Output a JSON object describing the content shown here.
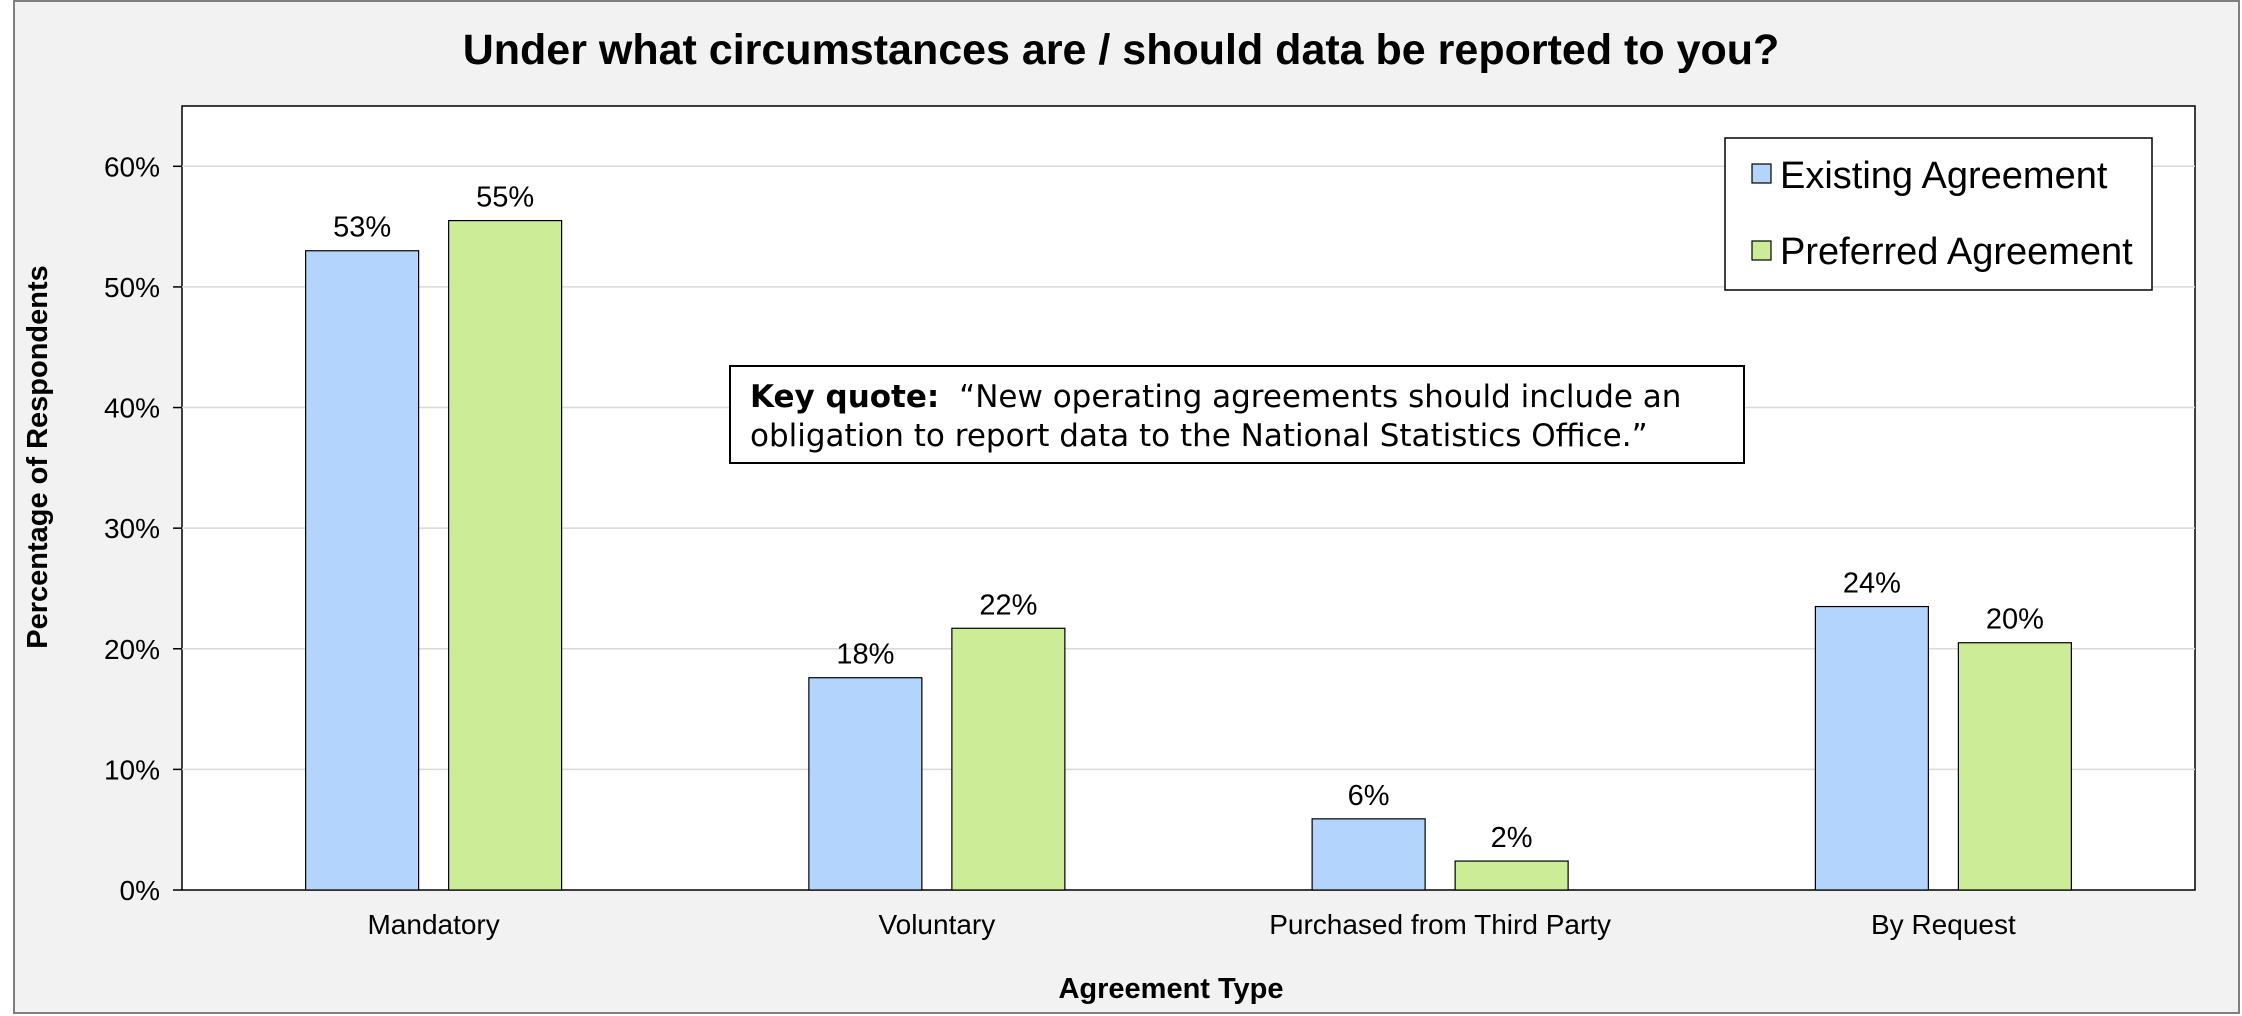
{
  "chart_data": {
    "type": "bar",
    "title": "Under what circumstances are / should data be reported to you?",
    "xlabel": "Agreement Type",
    "ylabel": "Percentage of Respondents",
    "categories": [
      "Mandatory",
      "Voluntary",
      "Purchased from Third Party",
      "By Request"
    ],
    "series": [
      {
        "name": "Existing Agreement",
        "values": [
          0.53,
          0.176,
          0.059,
          0.235
        ],
        "labels": [
          "53%",
          "18%",
          "6%",
          "24%"
        ],
        "color": "#b3d4fc"
      },
      {
        "name": "Preferred Agreement",
        "values": [
          0.555,
          0.217,
          0.024,
          0.205
        ],
        "labels": [
          "55%",
          "22%",
          "2%",
          "20%"
        ],
        "color": "#ccec98"
      }
    ],
    "ylim": [
      0,
      0.65
    ],
    "yticks": [
      0,
      0.1,
      0.2,
      0.3,
      0.4,
      0.5,
      0.6
    ],
    "ytick_labels": [
      "0%",
      "10%",
      "20%",
      "30%",
      "40%",
      "50%",
      "60%"
    ],
    "grid": true,
    "legend_position": "top-right",
    "annotation": {
      "bold": "Key quote:",
      "line1": "“New operating agreements should include an",
      "line2": "obligation to report data to the National Statistics Office.”"
    }
  }
}
